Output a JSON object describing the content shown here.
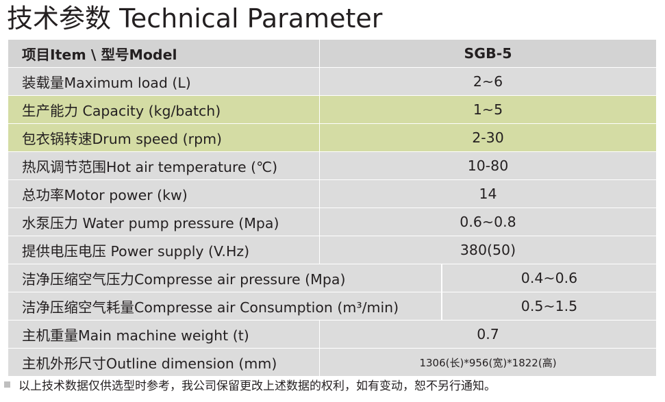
{
  "title": "技术参数 Technical Parameter",
  "table": {
    "header": {
      "param": "项目Item \\ 型号Model",
      "value": "SGB-5"
    },
    "rows": [
      {
        "param": "装载量Maximum load (L)",
        "value": "2~6"
      },
      {
        "param": "生产能力 Capacity (kg/batch)",
        "value": "1~5",
        "highlighted": true
      },
      {
        "param": "包衣锅转速Drum speed (rpm)",
        "value": "2-30",
        "highlighted": true
      },
      {
        "param": "热风调节范围Hot air temperature (℃)",
        "value": "10-80"
      },
      {
        "param": "总功率Motor power (kw)",
        "value": "14"
      },
      {
        "param": "水泵压力 Water pump pressure (Mpa)",
        "value": "0.6~0.8"
      },
      {
        "param": "提供电压电压 Power supply (V.Hz)",
        "value": "380(50)"
      },
      {
        "param": "洁净压缩空气压力Compresse air pressure (Mpa)",
        "value": "0.4~0.6"
      },
      {
        "param": "洁净压缩空气耗量Compresse air Consumption (m³/min)",
        "value": "0.5~1.5"
      },
      {
        "param": "主机重量Main machine weight (t)",
        "value": "0.7"
      },
      {
        "param": "主机外形尺寸Outline dimension (mm)",
        "value": "1306(长)*956(宽)*1822(高)"
      }
    ]
  },
  "footnote": "以上技术数据仅供选型时参考，我公司保留更改上述数据的权利，如有变动，恕不另行通知。",
  "colors": {
    "row_background": "#dcdcdc",
    "highlight_background": "#d4dca4",
    "text": "#231f20",
    "divider": "#ffffff"
  }
}
